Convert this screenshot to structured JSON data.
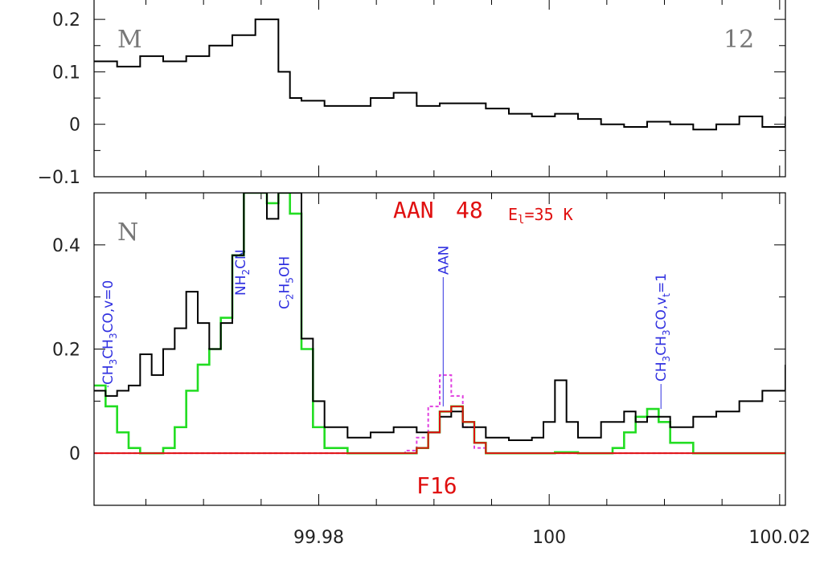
{
  "colors": {
    "observed": "#000000",
    "model_total": "#22dd22",
    "model_species": "#e01010",
    "model_species_alt": "#e040e0",
    "line_marker": "#3030e0",
    "annotation": "#e01010"
  },
  "chart_data": [
    {
      "type": "line",
      "panel_label": "M",
      "panel_number": "12",
      "xlim": [
        99.9605,
        100.0205
      ],
      "ylim": [
        -0.1,
        0.24
      ],
      "yticks": [
        {
          "value": -0.1,
          "label": "−0.1"
        },
        {
          "value": 0,
          "label": "0"
        },
        {
          "value": 0.1,
          "label": "0.1"
        },
        {
          "value": 0.2,
          "label": "0.2"
        }
      ],
      "series": [
        {
          "role": "observed",
          "step": true,
          "x": [
            99.9605,
            99.9625,
            99.9645,
            99.9665,
            99.9685,
            99.9705,
            99.9725,
            99.9745,
            99.9765,
            99.9775,
            99.9785,
            99.9805,
            99.9825,
            99.9845,
            99.9865,
            99.9885,
            99.9905,
            99.9925,
            99.9945,
            99.9965,
            99.9985,
            100.0005,
            100.0025,
            100.0045,
            100.0065,
            100.0085,
            100.0105,
            100.0125,
            100.0145,
            100.0165,
            100.0185,
            100.0205
          ],
          "y": [
            0.12,
            0.11,
            0.13,
            0.12,
            0.13,
            0.15,
            0.17,
            0.2,
            0.1,
            0.05,
            0.045,
            0.035,
            0.035,
            0.05,
            0.06,
            0.035,
            0.04,
            0.04,
            0.03,
            0.02,
            0.015,
            0.02,
            0.01,
            0.0,
            -0.005,
            0.005,
            0.0,
            -0.01,
            0.0,
            0.015,
            -0.005,
            0.015
          ]
        }
      ]
    },
    {
      "type": "line",
      "panel_label": "N",
      "xlim": [
        99.9605,
        100.0205
      ],
      "ylim": [
        -0.1,
        0.5
      ],
      "xticks": [
        {
          "value": 99.98,
          "label": "99.98"
        },
        {
          "value": 100,
          "label": "100"
        },
        {
          "value": 100.02,
          "label": "100.02"
        }
      ],
      "yticks": [
        {
          "value": 0,
          "label": "0"
        },
        {
          "value": 0.2,
          "label": "0.2"
        },
        {
          "value": 0.4,
          "label": "0.4"
        }
      ],
      "series": [
        {
          "role": "observed",
          "step": true,
          "x": [
            99.9605,
            99.9615,
            99.9625,
            99.9635,
            99.9645,
            99.9655,
            99.9665,
            99.9675,
            99.9685,
            99.9695,
            99.9705,
            99.9715,
            99.9725,
            99.9735,
            99.9745,
            99.9755,
            99.9765,
            99.9775,
            99.9785,
            99.9795,
            99.9805,
            99.9825,
            99.9845,
            99.9865,
            99.9885,
            99.9905,
            99.9915,
            99.9925,
            99.9945,
            99.9965,
            99.9985,
            99.9995,
            100.0005,
            100.0015,
            100.0025,
            100.0045,
            100.0065,
            100.0075,
            100.0085,
            100.0105,
            100.0125,
            100.0145,
            100.0165,
            100.0185,
            100.0205
          ],
          "y": [
            0.12,
            0.11,
            0.12,
            0.13,
            0.19,
            0.15,
            0.2,
            0.24,
            0.31,
            0.25,
            0.2,
            0.25,
            0.38,
            0.5,
            0.5,
            0.45,
            0.5,
            0.5,
            0.22,
            0.1,
            0.05,
            0.03,
            0.04,
            0.05,
            0.04,
            0.07,
            0.08,
            0.05,
            0.03,
            0.025,
            0.03,
            0.06,
            0.14,
            0.06,
            0.03,
            0.06,
            0.08,
            0.06,
            0.07,
            0.05,
            0.07,
            0.08,
            0.1,
            0.12,
            0.17
          ]
        },
        {
          "role": "model_total",
          "step": true,
          "x": [
            99.9605,
            99.9615,
            99.9625,
            99.9635,
            99.9645,
            99.9655,
            99.9665,
            99.9675,
            99.9685,
            99.9695,
            99.9705,
            99.9715,
            99.9725,
            99.9735,
            99.9745,
            99.9755,
            99.9765,
            99.9775,
            99.9785,
            99.9795,
            99.9805,
            99.9825,
            99.9845,
            99.9865,
            99.9875,
            99.9885,
            99.9895,
            99.9905,
            99.9915,
            99.9925,
            99.9935,
            99.9945,
            99.9965,
            99.9985,
            99.9995,
            100.0005,
            100.0025,
            100.0035,
            100.0045,
            100.0055,
            100.0065,
            100.0075,
            100.0085,
            100.0095,
            100.0105,
            100.0125,
            100.0145,
            100.0165,
            100.0185,
            100.0205
          ],
          "y": [
            0.13,
            0.09,
            0.04,
            0.01,
            0.0,
            0.0,
            0.01,
            0.05,
            0.12,
            0.17,
            0.2,
            0.26,
            0.38,
            0.5,
            0.5,
            0.48,
            0.5,
            0.46,
            0.2,
            0.05,
            0.01,
            0.0,
            0.0,
            0.0,
            0.0,
            0.01,
            0.04,
            0.08,
            0.09,
            0.06,
            0.02,
            0.0,
            0.0,
            0.0,
            0.0,
            0.002,
            0.0,
            0.0,
            0.0,
            0.01,
            0.04,
            0.07,
            0.085,
            0.06,
            0.02,
            0.0,
            0.0,
            0.0,
            0.0,
            0.0
          ]
        },
        {
          "role": "model_species",
          "step": true,
          "x": [
            99.9605,
            99.9865,
            99.9875,
            99.9885,
            99.9895,
            99.9905,
            99.9915,
            99.9925,
            99.9935,
            99.9945,
            100.0205
          ],
          "y": [
            0.0,
            0.0,
            0.0,
            0.01,
            0.04,
            0.08,
            0.09,
            0.06,
            0.02,
            0.0,
            0.0
          ]
        },
        {
          "role": "model_species_alt",
          "step": true,
          "dashed": true,
          "x": [
            99.9605,
            99.9875,
            99.9885,
            99.9895,
            99.9905,
            99.9915,
            99.9925,
            99.9935,
            99.9945,
            100.0205
          ],
          "y": [
            0.0,
            0.005,
            0.03,
            0.09,
            0.15,
            0.11,
            0.05,
            0.01,
            0.0,
            0.0
          ]
        }
      ],
      "line_markers": [
        {
          "x": 99.9617,
          "label": "CH3CH3CO,v=0"
        },
        {
          "x": 99.9732,
          "label": "NH2CN"
        },
        {
          "x": 99.977,
          "label": "C2H5OH"
        },
        {
          "x": 99.9908,
          "label": "AAN"
        },
        {
          "x": 100.0097,
          "label": "CH3CH3CO,vt=1"
        }
      ],
      "annotations": {
        "species": "AAN",
        "number": "48",
        "energy": "El=35 K",
        "filter": "F16"
      }
    }
  ]
}
